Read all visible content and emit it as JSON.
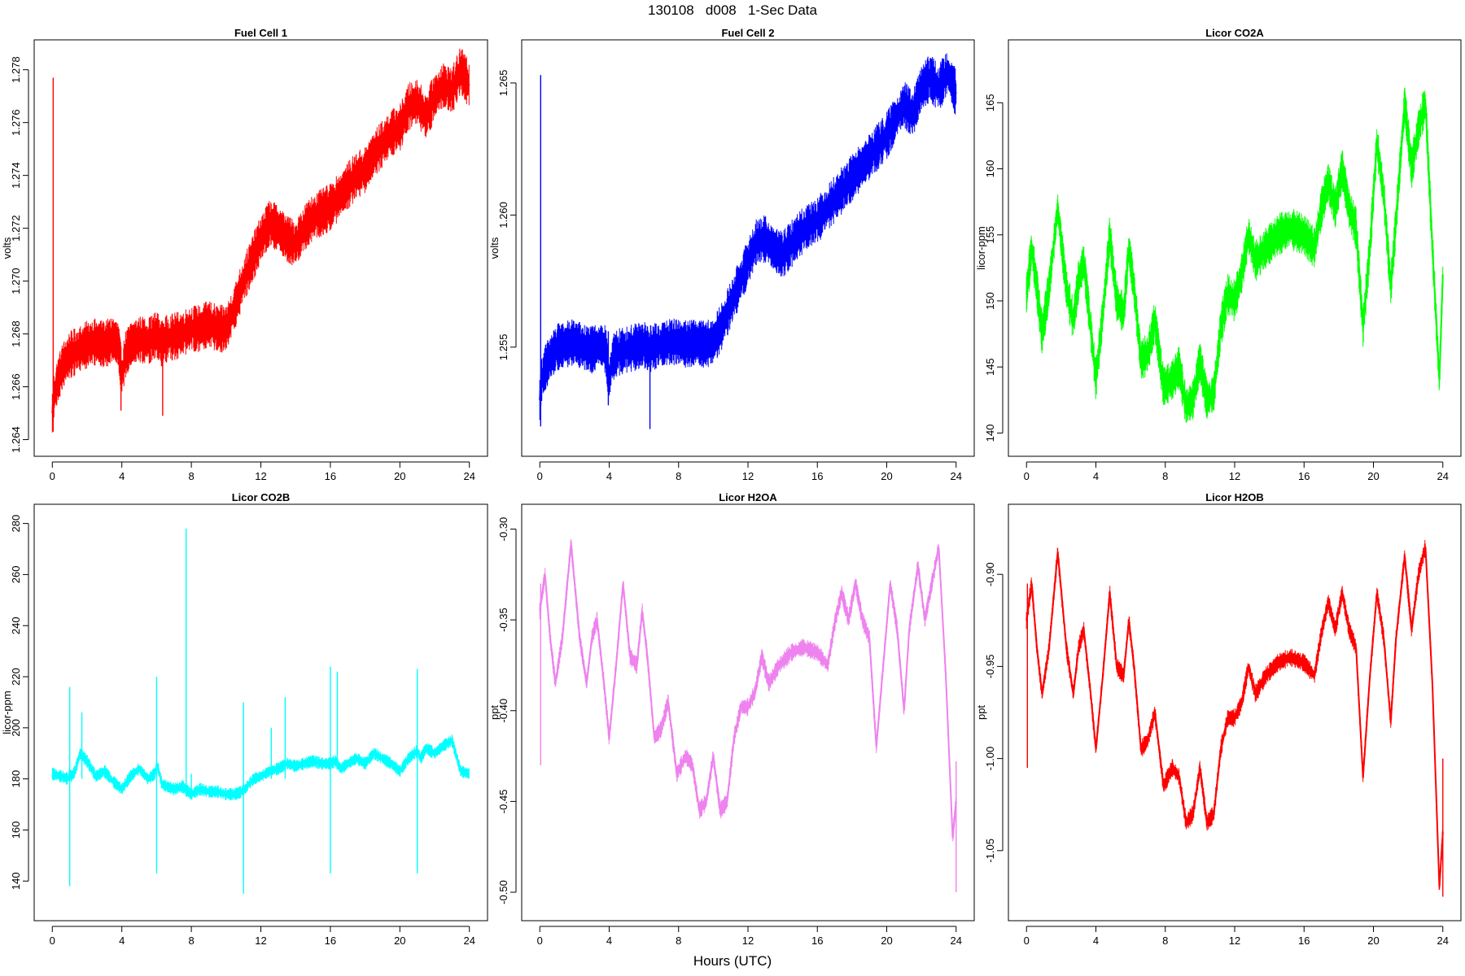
{
  "figure": {
    "title": "130108   d008   1-Sec Data",
    "xlabel": "Hours (UTC)"
  },
  "chart_data": [
    {
      "type": "line",
      "title": "Fuel Cell 1",
      "ylabel": "volts",
      "color": "#ff0000",
      "xlim": [
        0,
        24
      ],
      "ylim": [
        1.264,
        1.2785
      ],
      "xticks": [
        0,
        4,
        8,
        12,
        16,
        20,
        24
      ],
      "yticks": [
        "1.264",
        "1.266",
        "1.268",
        "1.270",
        "1.272",
        "1.274",
        "1.276",
        "1.278"
      ],
      "band": 0.0009,
      "x": [
        0,
        0.05,
        0.3,
        0.6,
        1.0,
        1.5,
        2.0,
        2.5,
        3.0,
        3.5,
        3.8,
        4.0,
        4.2,
        4.5,
        5.0,
        5.5,
        6.0,
        6.3,
        6.5,
        7.0,
        7.5,
        8.0,
        8.5,
        9.0,
        9.5,
        10.0,
        10.5,
        11.0,
        11.5,
        12.0,
        12.5,
        13.0,
        13.5,
        14.0,
        14.5,
        15.0,
        15.5,
        16.0,
        16.5,
        17.0,
        17.5,
        18.0,
        18.5,
        19.0,
        19.5,
        20.0,
        20.5,
        21.0,
        21.5,
        22.0,
        22.5,
        23.0,
        23.5,
        24.0
      ],
      "y": [
        1.265,
        1.2655,
        1.2662,
        1.2668,
        1.2672,
        1.2674,
        1.2676,
        1.2677,
        1.2676,
        1.2678,
        1.2676,
        1.2664,
        1.2672,
        1.2676,
        1.2678,
        1.2677,
        1.268,
        1.2676,
        1.2678,
        1.2679,
        1.268,
        1.2682,
        1.2682,
        1.2684,
        1.2682,
        1.2682,
        1.269,
        1.27,
        1.2708,
        1.2716,
        1.2722,
        1.272,
        1.2716,
        1.2714,
        1.272,
        1.2724,
        1.2726,
        1.2728,
        1.2732,
        1.2736,
        1.274,
        1.2742,
        1.2748,
        1.2752,
        1.2756,
        1.2758,
        1.2766,
        1.2768,
        1.2762,
        1.277,
        1.2774,
        1.2772,
        1.278,
        1.2774
      ],
      "spikes": [
        [
          0.05,
          1.2643,
          1.2777
        ],
        [
          3.95,
          1.2651,
          1.267
        ],
        [
          6.35,
          1.2649,
          1.267
        ]
      ]
    },
    {
      "type": "line",
      "title": "Fuel Cell 2",
      "ylabel": "volts",
      "color": "#0000ff",
      "xlim": [
        0,
        24
      ],
      "ylim": [
        1.2515,
        1.266
      ],
      "xticks": [
        0,
        4,
        8,
        12,
        16,
        20,
        24
      ],
      "yticks": [
        "1.255",
        "1.260",
        "1.265"
      ],
      "band": 0.0009,
      "x": [
        0,
        0.05,
        0.3,
        0.6,
        1.0,
        1.5,
        2.0,
        2.5,
        3.0,
        3.5,
        3.8,
        4.0,
        4.2,
        4.5,
        5.0,
        5.5,
        6.0,
        6.3,
        6.5,
        7.0,
        7.5,
        8.0,
        8.5,
        9.0,
        9.5,
        10.0,
        10.5,
        11.0,
        11.5,
        12.0,
        12.5,
        13.0,
        13.5,
        14.0,
        14.5,
        15.0,
        15.5,
        16.0,
        16.5,
        17.0,
        17.5,
        18.0,
        18.5,
        19.0,
        19.5,
        20.0,
        20.5,
        21.0,
        21.5,
        22.0,
        22.5,
        23.0,
        23.5,
        24.0
      ],
      "y": [
        1.253,
        1.2536,
        1.2542,
        1.2546,
        1.255,
        1.2551,
        1.2552,
        1.255,
        1.2549,
        1.2551,
        1.2549,
        1.2537,
        1.2546,
        1.2548,
        1.2549,
        1.255,
        1.2551,
        1.2549,
        1.255,
        1.2551,
        1.2552,
        1.2552,
        1.2551,
        1.2552,
        1.2551,
        1.2552,
        1.2558,
        1.2566,
        1.2574,
        1.2582,
        1.259,
        1.2591,
        1.2587,
        1.2585,
        1.2589,
        1.2593,
        1.2596,
        1.2598,
        1.2602,
        1.2606,
        1.261,
        1.2614,
        1.2618,
        1.2622,
        1.2626,
        1.263,
        1.2636,
        1.2642,
        1.2638,
        1.2648,
        1.2652,
        1.2648,
        1.2654,
        1.2646
      ],
      "spikes": [
        [
          0.05,
          1.252,
          1.2653
        ],
        [
          3.95,
          1.2528,
          1.2556
        ],
        [
          6.35,
          1.2519,
          1.2545
        ]
      ]
    },
    {
      "type": "line",
      "title": "Licor CO2A",
      "ylabel": "licor-ppm",
      "color": "#00ff00",
      "xlim": [
        0,
        24
      ],
      "ylim": [
        139.5,
        168.5
      ],
      "xticks": [
        0,
        4,
        8,
        12,
        16,
        20,
        24
      ],
      "yticks": [
        "140",
        "145",
        "150",
        "155",
        "160",
        "165"
      ],
      "band": 1.6,
      "x": [
        0,
        0.3,
        0.6,
        0.9,
        1.3,
        1.8,
        2.3,
        2.7,
        3.0,
        3.3,
        3.7,
        4.0,
        4.4,
        4.8,
        5.2,
        5.6,
        5.9,
        6.2,
        6.6,
        7.0,
        7.4,
        7.9,
        8.4,
        8.8,
        9.2,
        9.6,
        10.0,
        10.4,
        10.8,
        11.2,
        11.6,
        12.0,
        12.4,
        12.8,
        13.2,
        13.8,
        14.5,
        15.2,
        16.0,
        16.6,
        17.0,
        17.4,
        17.8,
        18.2,
        18.6,
        19.0,
        19.4,
        19.8,
        20.2,
        20.6,
        21.0,
        21.3,
        21.8,
        22.2,
        22.6,
        23.0,
        23.4,
        23.8,
        24.0
      ],
      "y": [
        150.5,
        154.0,
        151.0,
        147.5,
        151.0,
        157.0,
        151.0,
        148.5,
        151.5,
        153.0,
        148.0,
        144.0,
        149.0,
        155.0,
        150.0,
        149.0,
        154.0,
        151.0,
        145.5,
        146.0,
        148.5,
        143.5,
        144.0,
        145.0,
        142.0,
        142.5,
        145.5,
        142.5,
        143.0,
        148.0,
        150.5,
        150.0,
        152.0,
        155.0,
        153.0,
        154.0,
        155.0,
        155.5,
        155.0,
        154.0,
        157.0,
        159.0,
        157.0,
        160.0,
        157.0,
        155.5,
        148.0,
        154.0,
        162.0,
        158.0,
        151.0,
        156.0,
        165.0,
        160.0,
        163.0,
        165.0,
        154.0,
        144.0,
        152.0
      ],
      "spikes": []
    },
    {
      "type": "line",
      "title": "Licor CO2B",
      "ylabel": "licor-ppm",
      "color": "#00ffff",
      "xlim": [
        0,
        24
      ],
      "ylim": [
        131,
        281
      ],
      "xticks": [
        0,
        4,
        8,
        12,
        16,
        20,
        24
      ],
      "yticks": [
        "140",
        "160",
        "180",
        "200",
        "220",
        "240",
        "260",
        "280"
      ],
      "band": 2.5,
      "x": [
        0,
        0.5,
        0.9,
        1.0,
        1.1,
        1.3,
        1.6,
        2.0,
        2.5,
        3.0,
        3.5,
        4.0,
        4.5,
        5.0,
        5.5,
        5.9,
        6.0,
        6.1,
        6.3,
        6.6,
        7.0,
        7.5,
        8.0,
        8.5,
        9.0,
        9.5,
        10.0,
        10.5,
        10.9,
        11.0,
        11.1,
        11.3,
        11.6,
        12.0,
        12.5,
        13.0,
        13.5,
        14.0,
        14.5,
        15.0,
        15.5,
        16.0,
        16.3,
        16.6,
        17.0,
        17.5,
        18.0,
        18.5,
        19.0,
        19.5,
        20.0,
        20.5,
        21.0,
        21.2,
        21.5,
        22.0,
        22.5,
        23.0,
        23.5,
        24.0
      ],
      "y": [
        182,
        181,
        180,
        182,
        181,
        183,
        190,
        187,
        181,
        183,
        179,
        176,
        181,
        184,
        180,
        182,
        185,
        184,
        178,
        177,
        176,
        177,
        174,
        176,
        175,
        175,
        174,
        174,
        175,
        176,
        176,
        178,
        180,
        181,
        183,
        184,
        186,
        185,
        186,
        187,
        186,
        186,
        187,
        184,
        186,
        188,
        186,
        190,
        188,
        186,
        183,
        188,
        191,
        188,
        192,
        190,
        193,
        195,
        183,
        182
      ],
      "spikes": [
        [
          1.0,
          138,
          216
        ],
        [
          6.0,
          143,
          220
        ],
        [
          7.7,
          173,
          278
        ],
        [
          11.0,
          135,
          210
        ],
        [
          16.0,
          143,
          224
        ],
        [
          21.0,
          143,
          223
        ],
        [
          1.7,
          180,
          206
        ],
        [
          8.0,
          172,
          182
        ],
        [
          12.6,
          180,
          200
        ],
        [
          13.4,
          180,
          212
        ],
        [
          16.4,
          184,
          222
        ]
      ]
    },
    {
      "type": "line",
      "title": "Licor H2OA",
      "ylabel": "ppt",
      "color": "#ee82ee",
      "xlim": [
        0,
        24
      ],
      "ylim": [
        -0.5065,
        -0.2955
      ],
      "xticks": [
        0,
        4,
        8,
        12,
        16,
        20,
        24
      ],
      "yticks": [
        "-0.50",
        "-0.45",
        "-0.40",
        "-0.35",
        "-0.30"
      ],
      "band": 0.005,
      "x": [
        0,
        0.3,
        0.6,
        0.9,
        1.3,
        1.8,
        2.3,
        2.7,
        3.0,
        3.3,
        3.7,
        4.0,
        4.4,
        4.8,
        5.2,
        5.6,
        5.9,
        6.2,
        6.6,
        7.0,
        7.4,
        7.9,
        8.4,
        8.8,
        9.2,
        9.6,
        10.0,
        10.4,
        10.8,
        11.2,
        11.6,
        12.0,
        12.4,
        12.8,
        13.2,
        13.8,
        14.5,
        15.2,
        16.0,
        16.6,
        17.0,
        17.4,
        17.8,
        18.2,
        18.6,
        19.0,
        19.4,
        19.8,
        20.2,
        20.6,
        21.0,
        21.3,
        21.8,
        22.2,
        22.6,
        23.0,
        23.4,
        23.8,
        24.0
      ],
      "y": [
        -0.345,
        -0.325,
        -0.36,
        -0.385,
        -0.36,
        -0.308,
        -0.36,
        -0.385,
        -0.36,
        -0.35,
        -0.385,
        -0.415,
        -0.375,
        -0.33,
        -0.37,
        -0.375,
        -0.345,
        -0.37,
        -0.415,
        -0.41,
        -0.395,
        -0.435,
        -0.425,
        -0.43,
        -0.455,
        -0.45,
        -0.425,
        -0.455,
        -0.45,
        -0.415,
        -0.398,
        -0.398,
        -0.39,
        -0.37,
        -0.385,
        -0.375,
        -0.368,
        -0.365,
        -0.368,
        -0.375,
        -0.352,
        -0.335,
        -0.35,
        -0.33,
        -0.35,
        -0.36,
        -0.42,
        -0.375,
        -0.33,
        -0.355,
        -0.4,
        -0.355,
        -0.32,
        -0.35,
        -0.33,
        -0.31,
        -0.38,
        -0.47,
        -0.45
      ],
      "spikes": [
        [
          0.05,
          -0.43,
          -0.33
        ],
        [
          24.0,
          -0.5,
          -0.428
        ]
      ]
    },
    {
      "type": "line",
      "title": "Licor H2OB",
      "ylabel": "ppt",
      "color": "#ff0000",
      "xlim": [
        0,
        24
      ],
      "ylim": [
        -1.079,
        -0.871
      ],
      "xticks": [
        0,
        4,
        8,
        12,
        16,
        20,
        24
      ],
      "yticks": [
        "-1.05",
        "-1.00",
        "-0.95",
        "-0.90"
      ],
      "band": 0.005,
      "x": [
        0,
        0.3,
        0.6,
        0.9,
        1.3,
        1.8,
        2.3,
        2.7,
        3.0,
        3.3,
        3.7,
        4.0,
        4.4,
        4.8,
        5.2,
        5.6,
        5.9,
        6.2,
        6.6,
        7.0,
        7.4,
        7.9,
        8.4,
        8.8,
        9.2,
        9.6,
        10.0,
        10.4,
        10.8,
        11.2,
        11.6,
        12.0,
        12.4,
        12.8,
        13.2,
        13.8,
        14.5,
        15.2,
        16.0,
        16.6,
        17.0,
        17.4,
        17.8,
        18.2,
        18.6,
        19.0,
        19.4,
        19.8,
        20.2,
        20.6,
        21.0,
        21.3,
        21.8,
        22.2,
        22.6,
        23.0,
        23.4,
        23.8,
        24.0
      ],
      "y": [
        -0.925,
        -0.905,
        -0.94,
        -0.965,
        -0.94,
        -0.888,
        -0.94,
        -0.965,
        -0.94,
        -0.93,
        -0.965,
        -0.995,
        -0.955,
        -0.91,
        -0.95,
        -0.955,
        -0.925,
        -0.95,
        -0.995,
        -0.99,
        -0.975,
        -1.015,
        -1.005,
        -1.01,
        -1.035,
        -1.03,
        -1.005,
        -1.035,
        -1.03,
        -0.995,
        -0.978,
        -0.978,
        -0.97,
        -0.95,
        -0.965,
        -0.955,
        -0.948,
        -0.945,
        -0.948,
        -0.955,
        -0.932,
        -0.915,
        -0.93,
        -0.91,
        -0.93,
        -0.94,
        -1.01,
        -0.955,
        -0.91,
        -0.935,
        -0.98,
        -0.935,
        -0.89,
        -0.93,
        -0.9,
        -0.885,
        -0.96,
        -1.07,
        -1.04
      ],
      "spikes": [
        [
          0.05,
          -1.005,
          -0.905
        ],
        [
          24.0,
          -1.075,
          -1.0
        ]
      ]
    }
  ]
}
